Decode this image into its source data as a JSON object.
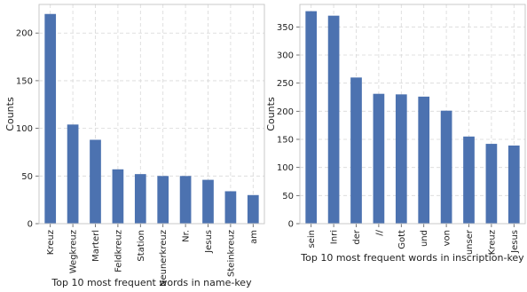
{
  "colors": {
    "bar": "#4c72b0",
    "grid": "#d8d8d8",
    "frame": "#c8c8c8"
  },
  "chart_data": [
    {
      "type": "bar",
      "title": "",
      "xlabel": "Top 10 most frequent words in name-key",
      "ylabel": "Counts",
      "categories": [
        "Kreuz",
        "Wegkreuz",
        "Marterl",
        "Feldkreuz",
        "Station",
        "Neunerkreuz",
        "Nr.",
        "Jesus",
        "Steinkreuz",
        "am"
      ],
      "values": [
        220,
        104,
        88,
        57,
        52,
        50,
        50,
        46,
        34,
        30
      ],
      "ylim": [
        0,
        230
      ],
      "yticks": [
        0,
        50,
        100,
        150,
        200
      ],
      "grid": true,
      "legend": "none"
    },
    {
      "type": "bar",
      "title": "",
      "xlabel": "Top 10 most frequent words in inscription-key",
      "ylabel": "Counts",
      "categories": [
        "sein",
        "Inri",
        "der",
        "//",
        "Gott",
        "und",
        "von",
        "unser",
        "Kreuz",
        "Jesus"
      ],
      "values": [
        378,
        370,
        260,
        231,
        230,
        226,
        201,
        155,
        142,
        139
      ],
      "ylim": [
        0,
        390
      ],
      "yticks": [
        0,
        50,
        100,
        150,
        200,
        250,
        300,
        350
      ],
      "grid": true,
      "legend": "none"
    }
  ]
}
